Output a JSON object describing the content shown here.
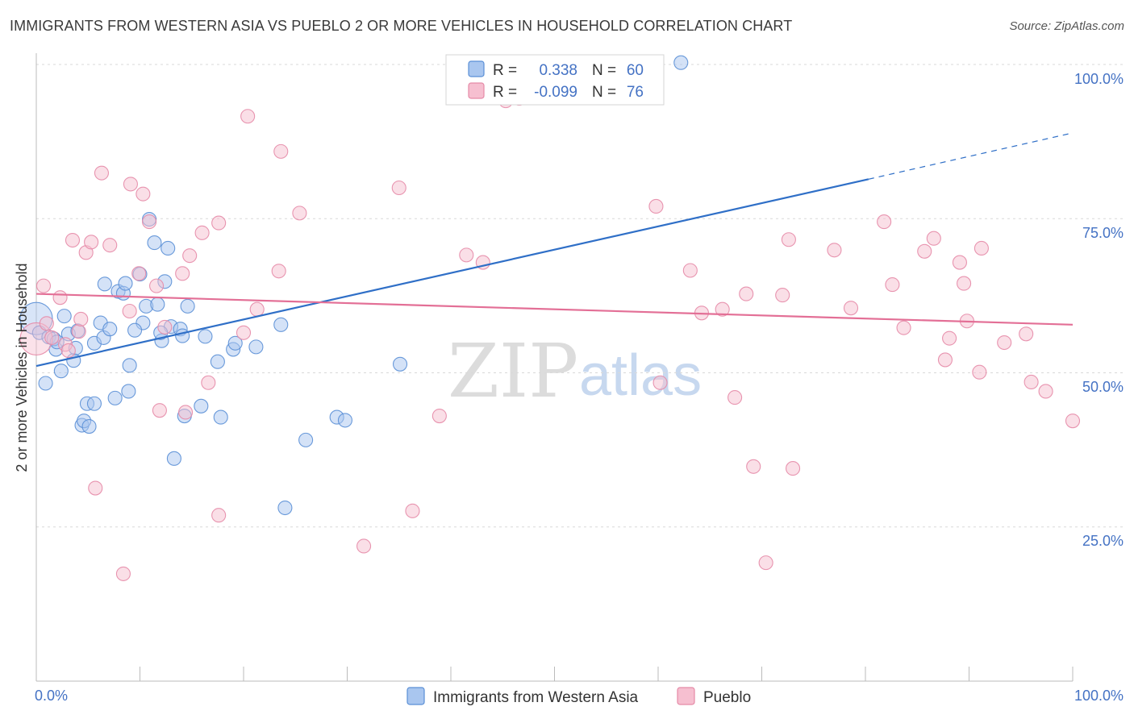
{
  "chart_data": {
    "type": "scatter",
    "title": "IMMIGRANTS FROM WESTERN ASIA VS PUEBLO 2 OR MORE VEHICLES IN HOUSEHOLD CORRELATION CHART",
    "source": "Source: ZipAtlas.com",
    "xlabel": "",
    "ylabel": "2 or more Vehicles in Household",
    "xlim": [
      0,
      100
    ],
    "ylim": [
      0,
      105
    ],
    "x_tick_labels": [
      "0.0%",
      "100.0%"
    ],
    "y_ticks": [
      25,
      50,
      75,
      100
    ],
    "y_tick_labels": [
      "25.0%",
      "50.0%",
      "75.0%",
      "100.0%"
    ],
    "watermark": {
      "zip": "ZIP",
      "atlas": "atlas"
    },
    "colors": {
      "blue_fill": "#a9c6ef",
      "blue_stroke": "#5a8fd6",
      "blue_line": "#2f6fc7",
      "pink_fill": "#f6bfd0",
      "pink_stroke": "#e58aa7",
      "pink_line": "#e36f96",
      "tick": "#4472c4",
      "grid": "#d9d9d9"
    },
    "legend_stats": [
      {
        "r_label": "R = ",
        "r_value": "0.338",
        "n_label": "N = ",
        "n_value": "60"
      },
      {
        "r_label": "R = ",
        "r_value": "-0.099",
        "n_label": "N = ",
        "n_value": "76"
      }
    ],
    "series": [
      {
        "name": "Immigrants from Western Asia",
        "color": "blue",
        "trend": {
          "x0": 0,
          "y0": 51.1,
          "x1": 80.3,
          "y1": 81.4,
          "dash_x1": 100,
          "dash_y1": 88.9
        },
        "points": [
          {
            "x": 0.0,
            "y": 58.8,
            "big": true
          },
          {
            "x": 0.3,
            "y": 56.5
          },
          {
            "x": 0.9,
            "y": 48.3
          },
          {
            "x": 1.2,
            "y": 55.8
          },
          {
            "x": 1.9,
            "y": 53.8
          },
          {
            "x": 2.4,
            "y": 50.3
          },
          {
            "x": 2.7,
            "y": 59.2
          },
          {
            "x": 3.1,
            "y": 56.3
          },
          {
            "x": 3.6,
            "y": 52.0
          },
          {
            "x": 3.8,
            "y": 54.0
          },
          {
            "x": 4.0,
            "y": 56.8
          },
          {
            "x": 4.9,
            "y": 45.0
          },
          {
            "x": 4.4,
            "y": 41.5
          },
          {
            "x": 4.6,
            "y": 42.2
          },
          {
            "x": 5.1,
            "y": 41.3
          },
          {
            "x": 5.6,
            "y": 45.0
          },
          {
            "x": 5.6,
            "y": 54.8
          },
          {
            "x": 6.2,
            "y": 58.1
          },
          {
            "x": 6.5,
            "y": 55.7
          },
          {
            "x": 6.6,
            "y": 64.4
          },
          {
            "x": 7.1,
            "y": 57.1
          },
          {
            "x": 7.6,
            "y": 45.9
          },
          {
            "x": 7.9,
            "y": 63.2
          },
          {
            "x": 8.4,
            "y": 62.9
          },
          {
            "x": 8.6,
            "y": 64.5
          },
          {
            "x": 8.9,
            "y": 47.0
          },
          {
            "x": 9.0,
            "y": 51.2
          },
          {
            "x": 10.0,
            "y": 66.0
          },
          {
            "x": 10.3,
            "y": 58.1
          },
          {
            "x": 10.6,
            "y": 60.8
          },
          {
            "x": 10.9,
            "y": 74.9
          },
          {
            "x": 11.4,
            "y": 71.1
          },
          {
            "x": 11.7,
            "y": 61.1
          },
          {
            "x": 12.1,
            "y": 55.2
          },
          {
            "x": 12.4,
            "y": 64.8
          },
          {
            "x": 12.7,
            "y": 70.2
          },
          {
            "x": 13.0,
            "y": 57.5
          },
          {
            "x": 13.3,
            "y": 36.1
          },
          {
            "x": 13.9,
            "y": 57.1
          },
          {
            "x": 14.1,
            "y": 56.0
          },
          {
            "x": 14.3,
            "y": 43.0
          },
          {
            "x": 14.6,
            "y": 60.8
          },
          {
            "x": 15.9,
            "y": 44.6
          },
          {
            "x": 16.3,
            "y": 55.9
          },
          {
            "x": 17.5,
            "y": 51.8
          },
          {
            "x": 17.8,
            "y": 42.8
          },
          {
            "x": 19.0,
            "y": 53.8
          },
          {
            "x": 19.2,
            "y": 54.8
          },
          {
            "x": 21.2,
            "y": 54.2
          },
          {
            "x": 23.6,
            "y": 57.8
          },
          {
            "x": 24.0,
            "y": 28.1
          },
          {
            "x": 26.0,
            "y": 39.1
          },
          {
            "x": 29.0,
            "y": 42.8
          },
          {
            "x": 29.8,
            "y": 42.3
          },
          {
            "x": 35.1,
            "y": 51.4
          },
          {
            "x": 62.2,
            "y": 100.3
          },
          {
            "x": 1.7,
            "y": 55.5
          },
          {
            "x": 2.0,
            "y": 55.0
          },
          {
            "x": 12.0,
            "y": 56.5
          },
          {
            "x": 9.5,
            "y": 56.9
          }
        ]
      },
      {
        "name": "Pueblo",
        "color": "pink",
        "trend": {
          "x0": 0,
          "y0": 62.8,
          "x1": 100,
          "y1": 57.8
        },
        "points": [
          {
            "x": 0.0,
            "y": 55.5,
            "big": true
          },
          {
            "x": 0.7,
            "y": 64.1
          },
          {
            "x": 1.0,
            "y": 58.0
          },
          {
            "x": 1.5,
            "y": 55.7
          },
          {
            "x": 2.3,
            "y": 62.2
          },
          {
            "x": 2.8,
            "y": 54.6
          },
          {
            "x": 3.1,
            "y": 53.6
          },
          {
            "x": 3.5,
            "y": 71.5
          },
          {
            "x": 4.1,
            "y": 56.7
          },
          {
            "x": 4.3,
            "y": 58.7
          },
          {
            "x": 4.8,
            "y": 69.5
          },
          {
            "x": 5.3,
            "y": 71.2
          },
          {
            "x": 5.7,
            "y": 31.3
          },
          {
            "x": 6.3,
            "y": 82.4
          },
          {
            "x": 7.1,
            "y": 70.7
          },
          {
            "x": 8.4,
            "y": 17.4
          },
          {
            "x": 9.0,
            "y": 60.0
          },
          {
            "x": 9.1,
            "y": 80.6
          },
          {
            "x": 9.9,
            "y": 66.1
          },
          {
            "x": 10.3,
            "y": 79.0
          },
          {
            "x": 10.9,
            "y": 74.5
          },
          {
            "x": 11.6,
            "y": 64.1
          },
          {
            "x": 11.9,
            "y": 43.9
          },
          {
            "x": 12.4,
            "y": 57.4
          },
          {
            "x": 14.1,
            "y": 66.1
          },
          {
            "x": 14.4,
            "y": 43.6
          },
          {
            "x": 14.8,
            "y": 69.0
          },
          {
            "x": 16.0,
            "y": 72.7
          },
          {
            "x": 16.6,
            "y": 48.4
          },
          {
            "x": 17.6,
            "y": 26.9
          },
          {
            "x": 17.6,
            "y": 74.3
          },
          {
            "x": 20.0,
            "y": 56.5
          },
          {
            "x": 20.4,
            "y": 91.6
          },
          {
            "x": 21.3,
            "y": 60.3
          },
          {
            "x": 23.4,
            "y": 66.5
          },
          {
            "x": 23.6,
            "y": 85.9
          },
          {
            "x": 25.4,
            "y": 75.9
          },
          {
            "x": 31.6,
            "y": 21.9
          },
          {
            "x": 35.0,
            "y": 80.0
          },
          {
            "x": 36.3,
            "y": 27.6
          },
          {
            "x": 38.9,
            "y": 43.0
          },
          {
            "x": 41.5,
            "y": 69.1
          },
          {
            "x": 43.1,
            "y": 67.9
          },
          {
            "x": 45.3,
            "y": 94.1
          },
          {
            "x": 46.6,
            "y": 94.5
          },
          {
            "x": 59.8,
            "y": 77.0
          },
          {
            "x": 60.2,
            "y": 48.4
          },
          {
            "x": 63.1,
            "y": 66.6
          },
          {
            "x": 64.2,
            "y": 59.7
          },
          {
            "x": 66.2,
            "y": 60.3
          },
          {
            "x": 67.4,
            "y": 46.0
          },
          {
            "x": 68.5,
            "y": 62.8
          },
          {
            "x": 69.2,
            "y": 34.8
          },
          {
            "x": 70.4,
            "y": 19.2
          },
          {
            "x": 72.0,
            "y": 62.6
          },
          {
            "x": 72.6,
            "y": 71.6
          },
          {
            "x": 73.0,
            "y": 34.5
          },
          {
            "x": 77.0,
            "y": 69.9
          },
          {
            "x": 78.6,
            "y": 60.5
          },
          {
            "x": 81.8,
            "y": 74.5
          },
          {
            "x": 82.6,
            "y": 64.3
          },
          {
            "x": 83.7,
            "y": 57.3
          },
          {
            "x": 85.7,
            "y": 69.7
          },
          {
            "x": 86.6,
            "y": 71.8
          },
          {
            "x": 87.7,
            "y": 52.1
          },
          {
            "x": 88.1,
            "y": 55.6
          },
          {
            "x": 89.1,
            "y": 67.9
          },
          {
            "x": 89.5,
            "y": 64.5
          },
          {
            "x": 89.8,
            "y": 58.4
          },
          {
            "x": 91.0,
            "y": 50.1
          },
          {
            "x": 91.2,
            "y": 70.2
          },
          {
            "x": 93.4,
            "y": 54.9
          },
          {
            "x": 95.5,
            "y": 56.3
          },
          {
            "x": 96.0,
            "y": 48.5
          },
          {
            "x": 97.4,
            "y": 47.0
          },
          {
            "x": 100.0,
            "y": 42.2
          }
        ]
      }
    ]
  }
}
